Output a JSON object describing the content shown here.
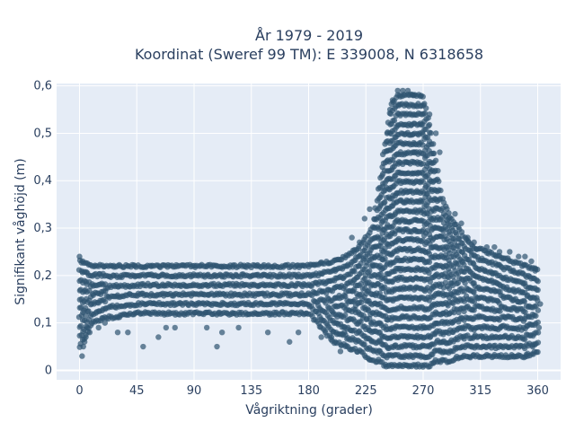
{
  "chart_data": {
    "type": "scatter",
    "title": "År 1979 - 2019",
    "subtitle": "Koordinat (Sweref 99 TM): E 339008, N 6318658",
    "xlabel": "Vågriktning (grader)",
    "ylabel": "Signifikant våghöjd (m)",
    "xlim": [
      -18,
      378
    ],
    "ylim": [
      -0.02,
      0.605
    ],
    "xticks": [
      0,
      45,
      90,
      135,
      180,
      225,
      270,
      315,
      360
    ],
    "xtick_labels": [
      "0",
      "45",
      "90",
      "135",
      "180",
      "225",
      "270",
      "315",
      "360"
    ],
    "yticks": [
      0,
      0.1,
      0.2,
      0.3,
      0.4,
      0.5,
      0.6
    ],
    "ytick_labels": [
      "0",
      "0,1",
      "0,2",
      "0,3",
      "0,4",
      "0,5",
      "0,6"
    ],
    "grid": true,
    "marker_color": "#2f5470",
    "marker_opacity": 0.7,
    "plot_background": "#e5ecf6",
    "series": [
      {
        "envelope": {
          "x": [
            0,
            10,
            20,
            45,
            90,
            135,
            180,
            200,
            210,
            220,
            230,
            235,
            240,
            245,
            250,
            255,
            260,
            265,
            270,
            275,
            280,
            285,
            290,
            300,
            310,
            320,
            330,
            340,
            350,
            360
          ],
          "ymin": [
            0.05,
            0.1,
            0.11,
            0.12,
            0.12,
            0.12,
            0.12,
            0.06,
            0.05,
            0.04,
            0.02,
            0.02,
            0.01,
            0.01,
            0.01,
            0.01,
            0.01,
            0.01,
            0.01,
            0.01,
            0.02,
            0.02,
            0.02,
            0.03,
            0.03,
            0.03,
            0.03,
            0.03,
            0.03,
            0.04
          ],
          "ymax": [
            0.23,
            0.22,
            0.22,
            0.22,
            0.22,
            0.22,
            0.22,
            0.23,
            0.24,
            0.26,
            0.3,
            0.38,
            0.48,
            0.56,
            0.58,
            0.58,
            0.58,
            0.58,
            0.58,
            0.52,
            0.44,
            0.36,
            0.33,
            0.29,
            0.26,
            0.25,
            0.24,
            0.23,
            0.22,
            0.21
          ]
        },
        "outliers": [
          [
            2,
            0.03
          ],
          [
            3,
            0.05
          ],
          [
            5,
            0.07
          ],
          [
            6,
            0.09
          ],
          [
            0,
            0.24
          ],
          [
            4,
            0.06
          ],
          [
            8,
            0.08
          ],
          [
            15,
            0.09
          ],
          [
            20,
            0.1
          ],
          [
            30,
            0.08
          ],
          [
            38,
            0.08
          ],
          [
            50,
            0.05
          ],
          [
            62,
            0.07
          ],
          [
            68,
            0.09
          ],
          [
            75,
            0.09
          ],
          [
            100,
            0.09
          ],
          [
            108,
            0.05
          ],
          [
            112,
            0.08
          ],
          [
            125,
            0.09
          ],
          [
            148,
            0.08
          ],
          [
            165,
            0.06
          ],
          [
            172,
            0.08
          ],
          [
            190,
            0.07
          ],
          [
            198,
            0.07
          ],
          [
            205,
            0.04
          ],
          [
            208,
            0.08
          ],
          [
            214,
            0.28
          ],
          [
            216,
            0.25
          ],
          [
            220,
            0.27
          ],
          [
            224,
            0.32
          ],
          [
            228,
            0.34
          ],
          [
            244,
            0.55
          ],
          [
            246,
            0.57
          ],
          [
            250,
            0.59
          ],
          [
            254,
            0.59
          ],
          [
            258,
            0.59
          ],
          [
            262,
            0.58
          ],
          [
            275,
            0.54
          ],
          [
            280,
            0.5
          ],
          [
            283,
            0.46
          ],
          [
            290,
            0.32
          ],
          [
            295,
            0.33
          ],
          [
            300,
            0.31
          ],
          [
            305,
            0.28
          ],
          [
            310,
            0.27
          ],
          [
            320,
            0.26
          ],
          [
            326,
            0.26
          ],
          [
            330,
            0.25
          ],
          [
            338,
            0.25
          ],
          [
            345,
            0.24
          ],
          [
            350,
            0.24
          ],
          [
            355,
            0.23
          ],
          [
            358,
            0.21
          ],
          [
            341,
            0.03
          ],
          [
            352,
            0.03
          ],
          [
            356,
            0.05
          ],
          [
            362,
            0.14
          ],
          [
            361,
            0.09
          ]
        ]
      }
    ]
  }
}
